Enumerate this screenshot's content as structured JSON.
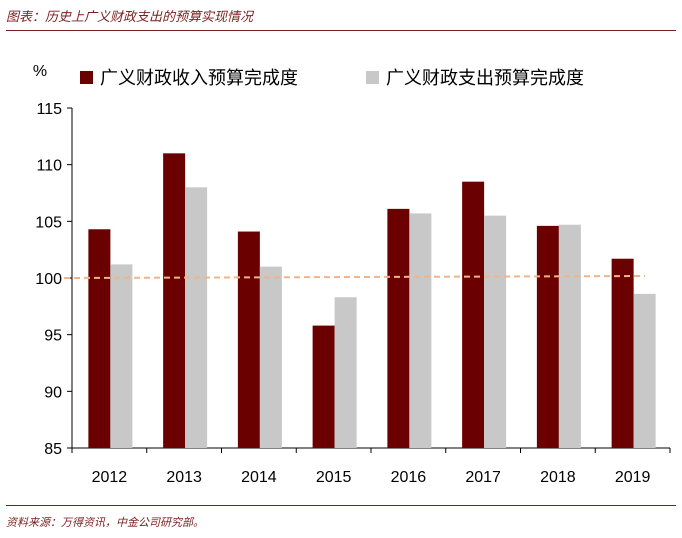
{
  "figure_title": "图表：历史上广义财政支出的预算实现情况",
  "source": "资料来源：万得资讯，中金公司研究部。",
  "colors": {
    "income": "#6b0000",
    "expenditure": "#c8c8c8",
    "reference_line": "#f0b48c",
    "accent": "#7a1f1f"
  },
  "chart_data": {
    "type": "bar",
    "title": "",
    "ylabel": "%",
    "xlabel": "",
    "ylim": [
      85,
      115
    ],
    "yticks": [
      "85",
      "90",
      "95",
      "100",
      "105",
      "110",
      "115"
    ],
    "grid": false,
    "legend_position": "top",
    "categories": [
      "2012",
      "2013",
      "2014",
      "2015",
      "2016",
      "2017",
      "2018",
      "2019"
    ],
    "series": [
      {
        "name": "广义财政收入预算完成度",
        "values": [
          104.3,
          111.0,
          104.1,
          95.8,
          106.1,
          108.5,
          104.6,
          101.7
        ]
      },
      {
        "name": "广义财政支出预算完成度",
        "values": [
          101.2,
          108.0,
          101.0,
          98.3,
          105.7,
          105.5,
          104.7,
          98.6
        ]
      }
    ],
    "reference_line": {
      "style": "dashed"
    }
  }
}
